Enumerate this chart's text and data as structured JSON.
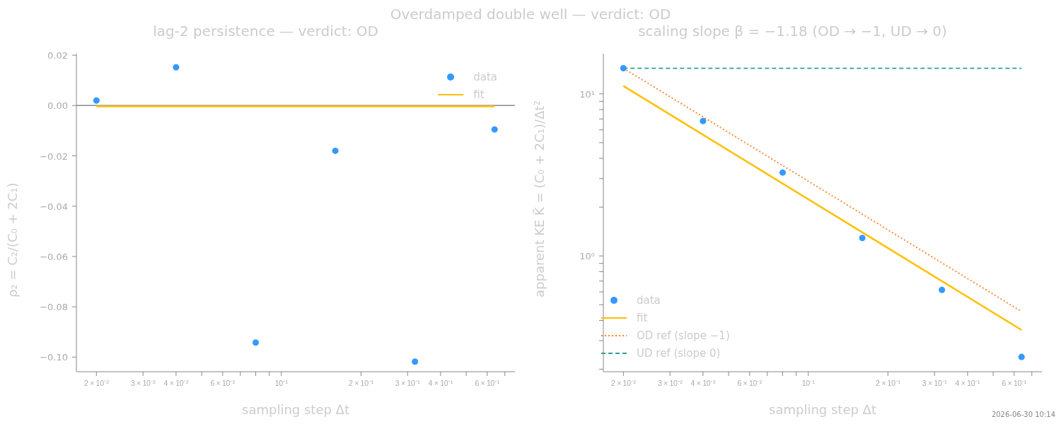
{
  "chart_data": [
    {
      "type": "scatter",
      "title": "lag-2 persistence — verdict: OD",
      "xlabel": "sampling step Δt",
      "ylabel": "ρ₂ = C₂/(C₀ + 2C₁)",
      "log": "x",
      "marker": "circle",
      "legend": "top right",
      "annotations": [
        "Overdamped double well — verdict: OD"
      ],
      "xlim": [
        0.0168,
        0.764
      ],
      "xticks": [
        {
          "value": 0.02,
          "label": "2 × 10⁻²"
        },
        {
          "value": 0.03,
          "label": "3 × 10⁻²"
        },
        {
          "value": 0.04,
          "label": "4 × 10⁻²"
        },
        {
          "value": 0.05,
          "label": null
        },
        {
          "value": 0.06,
          "label": "6 × 10⁻²"
        },
        {
          "value": 0.07,
          "label": null
        },
        {
          "value": 0.08,
          "label": null
        },
        {
          "value": 0.09,
          "label": null
        },
        {
          "value": 0.1,
          "label": "10⁻¹"
        },
        {
          "value": 0.2,
          "label": "2 × 10⁻¹"
        },
        {
          "value": 0.3,
          "label": "3 × 10⁻¹"
        },
        {
          "value": 0.4,
          "label": "4 × 10⁻¹"
        },
        {
          "value": 0.5,
          "label": null
        },
        {
          "value": 0.6,
          "label": "6 × 10⁻¹"
        },
        {
          "value": 0.7,
          "label": null
        }
      ],
      "ylim": [
        -0.1058,
        0.0206
      ],
      "yticks": [
        {
          "value": 0.02,
          "label": "0.02"
        },
        {
          "value": 0,
          "label": "0.00"
        },
        {
          "value": -0.02,
          "label": "−0.02"
        },
        {
          "value": -0.04,
          "label": "−0.04"
        },
        {
          "value": -0.06,
          "label": "−0.06"
        },
        {
          "value": -0.08,
          "label": "−0.08"
        },
        {
          "value": -0.1,
          "label": "−0.10"
        }
      ],
      "ref_lines": [
        {
          "axis": "y",
          "value": 0,
          "color": "#888888"
        }
      ],
      "series": [
        {
          "name": "data",
          "color": "#3399ff",
          "x": [
            0.02,
            0.04,
            0.08,
            0.16,
            0.32,
            0.64
          ],
          "values": [
            0.002,
            0.0152,
            -0.0942,
            -0.018,
            -0.1018,
            -0.0095
          ]
        },
        {
          "name": "fit",
          "type": "line",
          "color": "#ffbf00",
          "marker": "none",
          "line_style": "solid",
          "x": [
            0.02,
            0.64
          ],
          "values": [
            -0.0003,
            -0.0003
          ]
        }
      ]
    },
    {
      "type": "scatter",
      "title": "scaling slope β = −1.18  (OD → −1, UD → 0)",
      "xlabel": "sampling step Δt",
      "ylabel": "apparent KE K̃ = (C₀ + 2C₁)/Δt²",
      "log": "xy",
      "marker": "circle",
      "legend": "bottom left",
      "annotations": [
        "2026-06-30 10:14"
      ],
      "xlim": [
        0.0168,
        0.764
      ],
      "xticks": [
        {
          "value": 0.02,
          "label": "2 × 10⁻²"
        },
        {
          "value": 0.03,
          "label": "3 × 10⁻²"
        },
        {
          "value": 0.04,
          "label": "4 × 10⁻²"
        },
        {
          "value": 0.05,
          "label": null
        },
        {
          "value": 0.06,
          "label": "6 × 10⁻²"
        },
        {
          "value": 0.07,
          "label": null
        },
        {
          "value": 0.08,
          "label": null
        },
        {
          "value": 0.09,
          "label": null
        },
        {
          "value": 0.1,
          "label": "10⁻¹"
        },
        {
          "value": 0.2,
          "label": "2 × 10⁻¹"
        },
        {
          "value": 0.3,
          "label": "3 × 10⁻¹"
        },
        {
          "value": 0.4,
          "label": "4 × 10⁻¹"
        },
        {
          "value": 0.5,
          "label": null
        },
        {
          "value": 0.6,
          "label": "6 × 10⁻¹"
        },
        {
          "value": 0.7,
          "label": null
        }
      ],
      "ylim": [
        0.193,
        17.7
      ],
      "yticks": [
        {
          "value": 0.2,
          "label": null
        },
        {
          "value": 0.3,
          "label": null
        },
        {
          "value": 0.4,
          "label": null
        },
        {
          "value": 0.5,
          "label": null
        },
        {
          "value": 0.6,
          "label": null
        },
        {
          "value": 0.7,
          "label": null
        },
        {
          "value": 0.8,
          "label": null
        },
        {
          "value": 0.9,
          "label": null
        },
        {
          "value": 1,
          "label": "10⁰"
        },
        {
          "value": 2,
          "label": null
        },
        {
          "value": 3,
          "label": null
        },
        {
          "value": 4,
          "label": null
        },
        {
          "value": 5,
          "label": null
        },
        {
          "value": 6,
          "label": null
        },
        {
          "value": 7,
          "label": null
        },
        {
          "value": 8,
          "label": null
        },
        {
          "value": 9,
          "label": null
        },
        {
          "value": 10,
          "label": "10¹"
        }
      ],
      "series": [
        {
          "name": "data",
          "color": "#3399ff",
          "x": [
            0.02,
            0.04,
            0.08,
            0.16,
            0.32,
            0.64
          ],
          "values": [
            14.4,
            6.8,
            3.27,
            1.29,
            0.617,
            0.238
          ]
        },
        {
          "name": "fit",
          "type": "line",
          "color": "#ffbf00",
          "marker": "none",
          "line_style": "solid",
          "x": [
            0.02,
            0.64
          ],
          "values": [
            11.2,
            0.349
          ]
        },
        {
          "name": "OD ref (slope −1)",
          "type": "line",
          "color": "#ff7f2a",
          "marker": "none",
          "line_style": "dotted",
          "x": [
            0.02,
            0.64
          ],
          "values": [
            14.4,
            0.454
          ]
        },
        {
          "name": "UD ref (slope 0)",
          "type": "line",
          "color": "#2aa198",
          "marker": "none",
          "line_style": "dashed",
          "x": [
            0.02,
            0.64
          ],
          "values": [
            14.4,
            14.4
          ]
        }
      ]
    }
  ]
}
